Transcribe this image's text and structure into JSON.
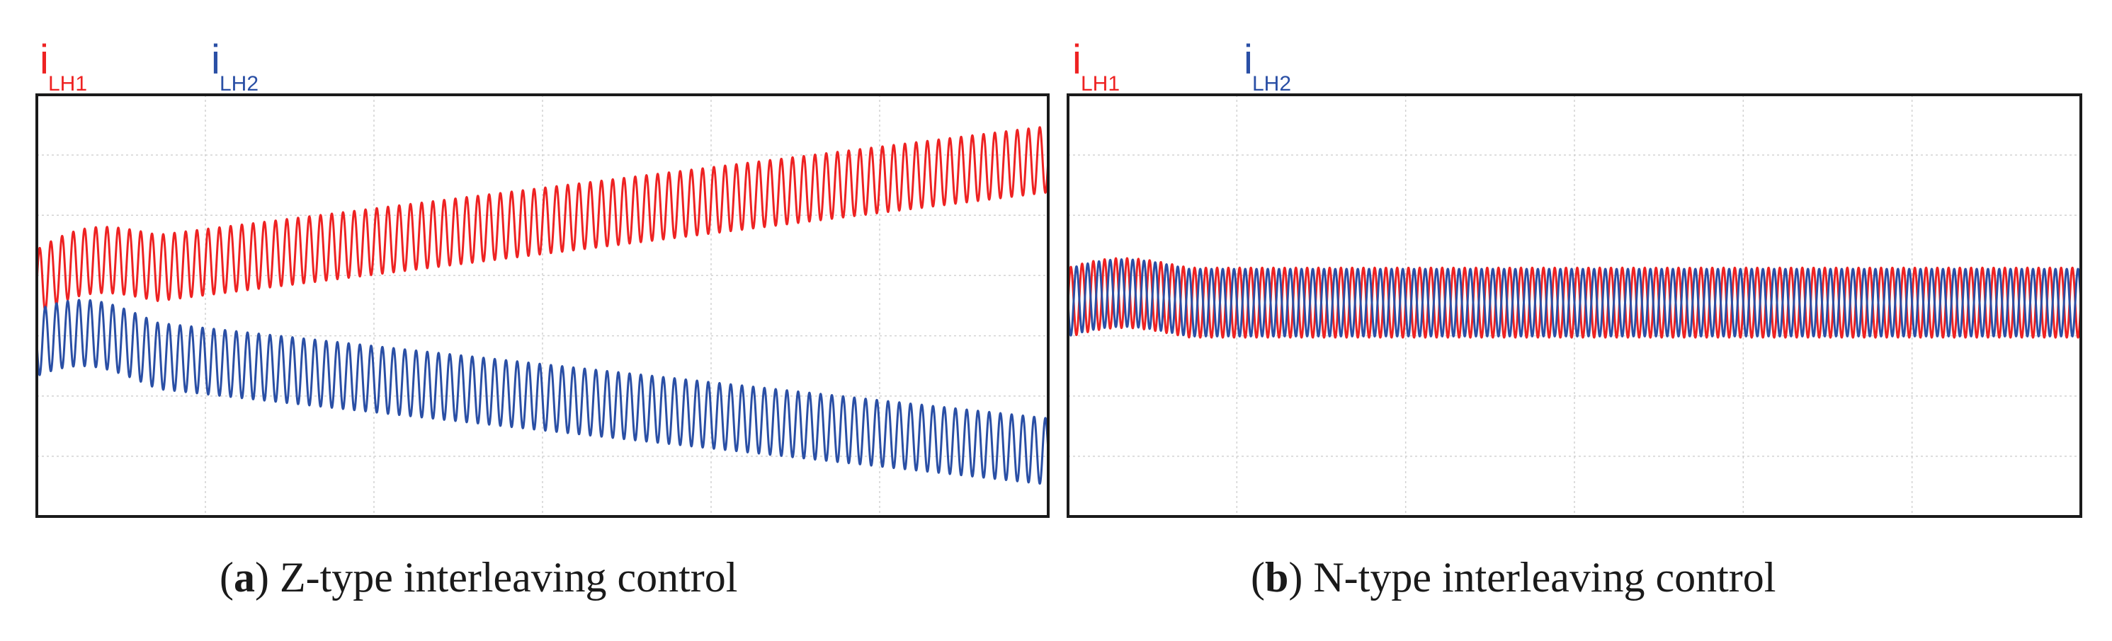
{
  "chart_data": [
    {
      "type": "line",
      "caption_tag": "a",
      "caption_text": "Z-type interleaving control",
      "grid": true,
      "x_divisions": 6,
      "y_divisions": 7,
      "xlim": [
        0,
        1
      ],
      "ylim": [
        0,
        7
      ],
      "series": [
        {
          "name": "i",
          "subscript": "LH1",
          "color": "#ee2222",
          "cycles": 90,
          "center_start": 3.88,
          "center_end": 5.93,
          "ripple_amplitude": 0.55,
          "initial_bump": 0.32
        },
        {
          "name": "i",
          "subscript": "LH2",
          "color": "#2a4fa5",
          "cycles": 90,
          "center_start": 2.88,
          "center_end": 1.08,
          "ripple_amplitude": 0.55,
          "initial_bump": 0.32
        }
      ]
    },
    {
      "type": "line",
      "caption_tag": "b",
      "caption_text": "N-type interleaving control",
      "grid": true,
      "x_divisions": 6,
      "y_divisions": 7,
      "xlim": [
        0,
        1
      ],
      "ylim": [
        0,
        7
      ],
      "series": [
        {
          "name": "i",
          "subscript": "LH1",
          "color": "#ee2222",
          "cycles": 90,
          "center_start": 3.55,
          "center_end": 3.55,
          "ripple_amplitude": 0.58,
          "initial_bump": 0.2
        },
        {
          "name": "i",
          "subscript": "LH2",
          "color": "#2a4fa5",
          "cycles": 90,
          "center_start": 3.55,
          "center_end": 3.55,
          "ripple_amplitude": 0.56,
          "initial_bump": 0.2
        }
      ]
    }
  ]
}
